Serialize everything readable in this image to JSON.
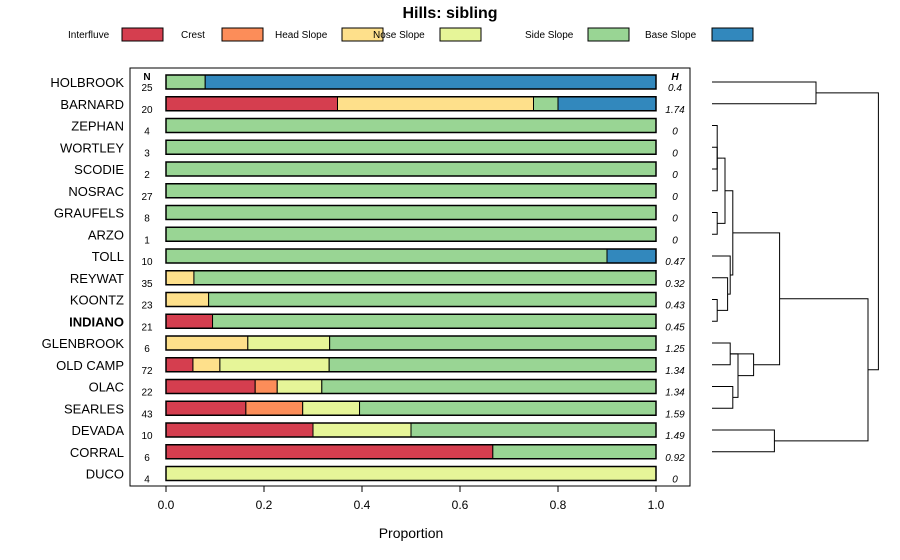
{
  "chart_data": {
    "type": "bar",
    "subtype": "stacked-horizontal-proportion",
    "title": "Hills: sibling",
    "xlabel": "Proportion",
    "xlim": [
      0,
      1
    ],
    "xticks": [
      "0.0",
      "0.2",
      "0.4",
      "0.6",
      "0.8",
      "1.0"
    ],
    "xtick_values": [
      0,
      0.2,
      0.4,
      0.6,
      0.8,
      1.0
    ],
    "n_header": "N",
    "h_header": "H",
    "legend": [
      {
        "name": "Interfluve",
        "color": "#d53e4f"
      },
      {
        "name": "Crest",
        "color": "#fc8d59"
      },
      {
        "name": "Head Slope",
        "color": "#fee08b"
      },
      {
        "name": "Nose Slope",
        "color": "#e6f598"
      },
      {
        "name": "Side Slope",
        "color": "#99d594"
      },
      {
        "name": "Base Slope",
        "color": "#3288bd"
      }
    ],
    "highlight": "INDIANO",
    "categories": [
      "HOLBROOK",
      "BARNARD",
      "ZEPHAN",
      "WORTLEY",
      "SCODIE",
      "NOSRAC",
      "GRAUFELS",
      "ARZO",
      "TOLL",
      "REYWAT",
      "KOONTZ",
      "INDIANO",
      "GLENBROOK",
      "OLD CAMP",
      "OLAC",
      "SEARLES",
      "DEVADA",
      "CORRAL",
      "DUCO"
    ],
    "n": [
      "25",
      "20",
      "4",
      "3",
      "2",
      "27",
      "8",
      "1",
      "10",
      "35",
      "23",
      "21",
      "6",
      "72",
      "22",
      "43",
      "10",
      "6",
      "4"
    ],
    "h": [
      "0.4",
      "1.74",
      "0",
      "0",
      "0",
      "0",
      "0",
      "0",
      "0.47",
      "0.32",
      "0.43",
      "0.45",
      "1.25",
      "1.34",
      "1.34",
      "1.59",
      "1.49",
      "0.92",
      "0"
    ],
    "series": [
      {
        "name": "Interfluve",
        "values": [
          0,
          0.35,
          0,
          0,
          0,
          0,
          0,
          0,
          0,
          0,
          0,
          0.095,
          0,
          0.055,
          0.182,
          0.163,
          0.3,
          0.667,
          0
        ]
      },
      {
        "name": "Crest",
        "values": [
          0,
          0,
          0,
          0,
          0,
          0,
          0,
          0,
          0,
          0,
          0,
          0,
          0,
          0,
          0.045,
          0.116,
          0,
          0,
          0
        ]
      },
      {
        "name": "Head Slope",
        "values": [
          0,
          0.4,
          0,
          0,
          0,
          0,
          0,
          0,
          0,
          0.057,
          0.087,
          0,
          0.167,
          0.055,
          0,
          0,
          0,
          0,
          0
        ]
      },
      {
        "name": "Nose Slope",
        "values": [
          0,
          0,
          0,
          0,
          0,
          0,
          0,
          0,
          0,
          0,
          0,
          0,
          0.167,
          0.223,
          0.091,
          0.116,
          0.2,
          0,
          1.0
        ]
      },
      {
        "name": "Side Slope",
        "values": [
          0.08,
          0.05,
          1,
          1,
          1,
          1,
          1,
          1,
          0.9,
          0.943,
          0.913,
          0.905,
          0.666,
          0.667,
          0.682,
          0.605,
          0.5,
          0.333,
          0
        ]
      },
      {
        "name": "Base Slope",
        "values": [
          0.92,
          0.2,
          0,
          0,
          0,
          0,
          0,
          0,
          0.1,
          0,
          0,
          0,
          0,
          0,
          0,
          0,
          0,
          0,
          0
        ]
      }
    ],
    "dendrogram": {
      "type": "hierarchical-clustering",
      "leaf_order": [
        "HOLBROOK",
        "BARNARD",
        "ZEPHAN",
        "WORTLEY",
        "SCODIE",
        "NOSRAC",
        "GRAUFELS",
        "ARZO",
        "TOLL",
        "REYWAT",
        "KOONTZ",
        "INDIANO",
        "GLENBROOK",
        "OLD CAMP",
        "OLAC",
        "SEARLES",
        "DEVADA",
        "CORRAL",
        "DUCO"
      ],
      "merges": [
        {
          "a": "WORTLEY",
          "b": "SCODIE",
          "height": 0.01
        },
        {
          "a": "ZEPHAN",
          "b": "NOSRAC",
          "height": 0.01
        },
        {
          "a": "GRAUFELS",
          "b": "ARZO",
          "height": 0.01
        },
        {
          "a": "KOONTZ",
          "b": "INDIANO",
          "height": 0.01
        },
        {
          "a": "OLAC",
          "b": "SEARLES",
          "height": 0.04
        },
        {
          "a": "ZEPHAN",
          "b": "WORTLEY",
          "height": 0.02
        },
        {
          "a": "ZEPHAN",
          "b": "GRAUFELS",
          "height": 0.025
        },
        {
          "a": "REYWAT",
          "b": "KOONTZ",
          "height": 0.03
        },
        {
          "a": "TOLL",
          "b": "REYWAT",
          "height": 0.035
        },
        {
          "a": "GLENBROOK",
          "b": "OLD CAMP",
          "height": 0.035
        },
        {
          "a": "OLD CAMP",
          "b": "OLAC",
          "height": 0.05
        },
        {
          "a": "ZEPHAN",
          "b": "TOLL",
          "height": 0.04
        },
        {
          "a": "GLENBROOK",
          "b": "OLD CAMP",
          "height": 0.08
        },
        {
          "a": "DEVADA",
          "b": "CORRAL",
          "height": 0.12
        },
        {
          "a": "HOLBROOK",
          "b": "BARNARD",
          "height": 0.2
        },
        {
          "a": "ZEPHAN",
          "b": "GLENBROOK",
          "height": 0.13
        },
        {
          "a": "ZEPHAN",
          "b": "DEVADA",
          "height": 0.3
        },
        {
          "a": "HOLBROOK",
          "b": "ZEPHAN",
          "height": 0.32
        }
      ]
    }
  }
}
